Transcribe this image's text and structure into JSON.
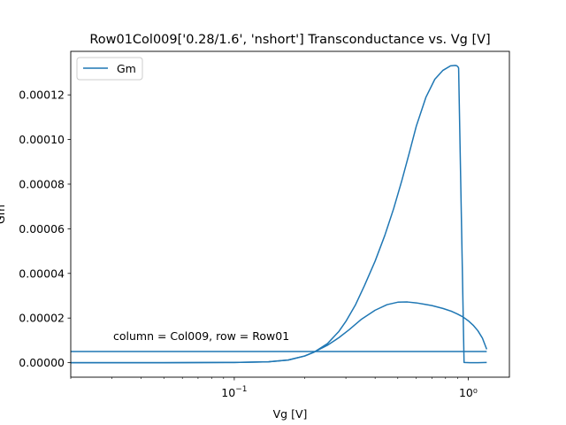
{
  "chart_data": {
    "type": "line",
    "title": "Row01Col009['0.28/1.6', 'nshort'] Transconductance vs. Vg [V]",
    "xlabel": "Vg [V]",
    "ylabel": "Gm",
    "xscale": "log",
    "xlim": [
      0.02,
      1.5
    ],
    "ylim": [
      -6.5e-06,
      0.0001395
    ],
    "x_ticks": [
      {
        "value": 0.1,
        "base": "10",
        "exp": "−1"
      },
      {
        "value": 1,
        "label": "10⁰"
      }
    ],
    "y_ticks": [
      {
        "value": 0,
        "label": "0.00000"
      },
      {
        "value": 2e-05,
        "label": "0.00002"
      },
      {
        "value": 4e-05,
        "label": "0.00004"
      },
      {
        "value": 6e-05,
        "label": "0.00006"
      },
      {
        "value": 8e-05,
        "label": "0.00008"
      },
      {
        "value": 0.0001,
        "label": "0.00010"
      },
      {
        "value": 0.00012,
        "label": "0.00012"
      }
    ],
    "legend": {
      "position": "top-left",
      "entries": [
        "Gm"
      ]
    },
    "annotation": "column = Col009, row = Row01",
    "grid": false,
    "series": [
      {
        "name": "Gm",
        "color": "#1f77b4",
        "x": [
          0.02,
          0.05,
          0.1,
          0.14,
          0.17,
          0.2,
          0.22,
          0.25,
          0.28,
          0.3,
          0.33,
          0.36,
          0.4,
          0.44,
          0.48,
          0.52,
          0.56,
          0.6,
          0.66,
          0.72,
          0.78,
          0.84,
          0.88,
          0.895,
          0.905,
          0.91,
          0.96,
          1.02,
          1.1,
          1.2
        ],
        "y": [
          0,
          0,
          1e-07,
          4e-07,
          1.2e-06,
          3e-06,
          4.8e-06,
          8.5e-06,
          1.4e-05,
          1.85e-05,
          2.6e-05,
          3.45e-05,
          4.55e-05,
          5.7e-05,
          6.9e-05,
          8.15e-05,
          9.4e-05,
          0.000106,
          0.000119,
          0.000127,
          0.000131,
          0.000133,
          0.0001332,
          0.000133,
          0.0001325,
          0.000132,
          1e-07,
          0,
          0,
          1e-07
        ]
      },
      {
        "name": "Gm",
        "color": "#1f77b4",
        "x": [
          0.02,
          0.05,
          0.1,
          0.14,
          0.17,
          0.2,
          0.22,
          0.25,
          0.28,
          0.31,
          0.35,
          0.4,
          0.45,
          0.5,
          0.55,
          0.6,
          0.65,
          0.7,
          0.78,
          0.85,
          0.9,
          0.95,
          1.0,
          1.05,
          1.1,
          1.15,
          1.2
        ],
        "y": [
          0,
          0,
          1e-07,
          4e-07,
          1.2e-06,
          3e-06,
          4.8e-06,
          7.8e-06,
          1.12e-05,
          1.48e-05,
          1.95e-05,
          2.35e-05,
          2.6e-05,
          2.71e-05,
          2.72e-05,
          2.68e-05,
          2.62e-05,
          2.56e-05,
          2.43e-05,
          2.3e-05,
          2.18e-05,
          2.05e-05,
          1.88e-05,
          1.68e-05,
          1.43e-05,
          1.1e-05,
          6e-06
        ]
      },
      {
        "name": "Gm",
        "color": "#1f77b4",
        "x": [
          0.02,
          1.2
        ],
        "y": [
          5e-06,
          5e-06
        ]
      }
    ]
  }
}
